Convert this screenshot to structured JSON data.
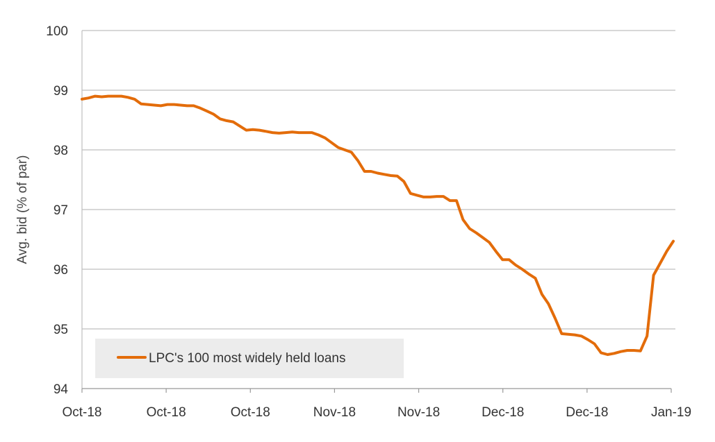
{
  "chart_data": {
    "type": "line",
    "title": "",
    "xlabel": "",
    "ylabel": "Avg. bid (% of par)",
    "ylim": [
      94,
      100
    ],
    "yticks": [
      94,
      95,
      96,
      97,
      98,
      99,
      100
    ],
    "xtick_labels": [
      "Oct-18",
      "Oct-18",
      "Oct-18",
      "Nov-18",
      "Nov-18",
      "Dec-18",
      "Dec-18",
      "Jan-19"
    ],
    "grid": true,
    "legend_position": "bottom-left",
    "colors": {
      "series": "#e36c0a",
      "grid": "#bfbfbf",
      "legend_box": "#ececec"
    },
    "series": [
      {
        "name": "LPC's 100 most widely held loans",
        "values": [
          98.85,
          98.87,
          98.9,
          98.89,
          98.9,
          98.9,
          98.9,
          98.88,
          98.85,
          98.77,
          98.76,
          98.75,
          98.74,
          98.76,
          98.76,
          98.75,
          98.74,
          98.74,
          98.7,
          98.65,
          98.6,
          98.52,
          98.49,
          98.47,
          98.4,
          98.33,
          98.34,
          98.33,
          98.31,
          98.29,
          98.28,
          98.29,
          98.3,
          98.29,
          98.29,
          98.29,
          98.25,
          98.2,
          98.12,
          98.04,
          98.0,
          97.96,
          97.82,
          97.64,
          97.64,
          97.61,
          97.59,
          97.57,
          97.56,
          97.47,
          97.27,
          97.24,
          97.21,
          97.21,
          97.22,
          97.22,
          97.15,
          97.15,
          96.83,
          96.68,
          96.61,
          96.53,
          96.45,
          96.3,
          96.16,
          96.16,
          96.07,
          96.0,
          95.92,
          95.85,
          95.58,
          95.42,
          95.18,
          94.92,
          94.91,
          94.9,
          94.88,
          94.82,
          94.75,
          94.6,
          94.57,
          94.59,
          94.62,
          94.64,
          94.64,
          94.63,
          94.88,
          95.9,
          96.1,
          96.3,
          96.47
        ]
      }
    ]
  }
}
